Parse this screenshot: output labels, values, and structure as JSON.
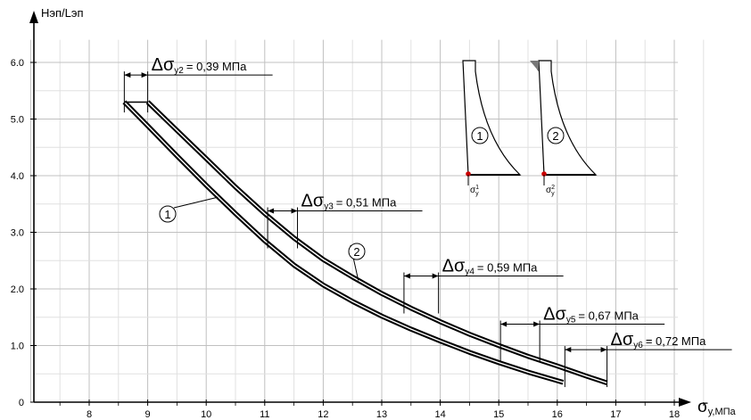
{
  "chart_data": {
    "type": "line",
    "title": "",
    "xlabel": "σy,МПа",
    "ylabel": "Нэп/Lэп",
    "xlim": [
      7,
      18.5
    ],
    "ylim": [
      0,
      6.4
    ],
    "grid": true,
    "x_ticks": [
      "8",
      "9",
      "10",
      "11",
      "12",
      "13",
      "14",
      "15",
      "16",
      "17",
      "18"
    ],
    "y_ticks": [
      "0",
      "1.0",
      "2.0",
      "3.0",
      "4.0",
      "5.0",
      "6.0"
    ],
    "series": [
      {
        "name": "1",
        "x": [
          8.6,
          9.0,
          9.5,
          10.0,
          10.5,
          11.0,
          11.5,
          12.0,
          12.5,
          13.0,
          13.5,
          14.0,
          14.5,
          15.0,
          15.5,
          16.0,
          16.1
        ],
        "y": [
          5.3,
          4.88,
          4.35,
          3.83,
          3.33,
          2.85,
          2.42,
          2.07,
          1.78,
          1.52,
          1.29,
          1.08,
          0.88,
          0.7,
          0.53,
          0.38,
          0.35
        ]
      },
      {
        "name": "2",
        "x": [
          9.0,
          9.5,
          10.0,
          10.5,
          11.0,
          11.5,
          12.0,
          12.5,
          13.0,
          13.5,
          14.0,
          14.5,
          15.0,
          15.5,
          16.0,
          16.5,
          16.85
        ],
        "y": [
          5.3,
          4.8,
          4.3,
          3.8,
          3.33,
          2.9,
          2.52,
          2.21,
          1.92,
          1.66,
          1.42,
          1.2,
          1.0,
          0.81,
          0.64,
          0.46,
          0.34
        ]
      }
    ],
    "curve_labels": [
      "1",
      "2"
    ],
    "annotations": [
      {
        "delta": "Δ",
        "sub": "y2",
        "text": "= 0,39 МПа",
        "x1": 8.6,
        "x2": 9.0,
        "y": 5.4
      },
      {
        "delta": "Δ",
        "sub": "y3",
        "text": "= 0,51 МПа",
        "x1": 11.05,
        "x2": 11.56,
        "y": 3.0
      },
      {
        "delta": "Δ",
        "sub": "y4",
        "text": "= 0,59 МПа",
        "x1": 13.38,
        "x2": 13.97,
        "y": 1.85
      },
      {
        "delta": "Δ",
        "sub": "y5",
        "text": "= 0,67 МПа",
        "x1": 15.03,
        "x2": 15.7,
        "y": 1.0
      },
      {
        "delta": "Δ",
        "sub": "y6",
        "text": "= 0,72 МПа",
        "x1": 16.13,
        "x2": 16.85,
        "y": 0.55
      }
    ],
    "insets": [
      {
        "label": "1",
        "stress_label": "σ",
        "stress_sup": "1",
        "stress_sub": "y",
        "hatched": false
      },
      {
        "label": "2",
        "stress_label": "σ",
        "stress_sup": "2",
        "stress_sub": "y",
        "hatched": true
      }
    ],
    "colors": {
      "line": "#000000",
      "grid": "#c8c8c8",
      "marker": "#cc0000"
    }
  }
}
